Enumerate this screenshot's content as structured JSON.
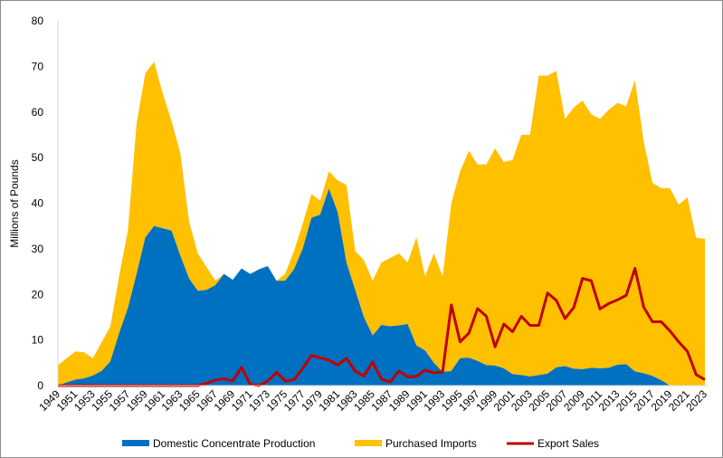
{
  "chart_data": {
    "type": "area",
    "stacked": true,
    "title": "",
    "xlabel": "",
    "ylabel": "Millions of Pounds",
    "ylim": [
      0,
      80
    ],
    "yticks": [
      0,
      10,
      20,
      30,
      40,
      50,
      60,
      70,
      80
    ],
    "x": [
      1949,
      1950,
      1951,
      1952,
      1953,
      1954,
      1955,
      1956,
      1957,
      1958,
      1959,
      1960,
      1961,
      1962,
      1963,
      1964,
      1965,
      1966,
      1967,
      1968,
      1969,
      1970,
      1971,
      1972,
      1973,
      1974,
      1975,
      1976,
      1977,
      1978,
      1979,
      1980,
      1981,
      1982,
      1983,
      1984,
      1985,
      1986,
      1987,
      1988,
      1989,
      1990,
      1991,
      1992,
      1993,
      1994,
      1995,
      1996,
      1997,
      1998,
      1999,
      2000,
      2001,
      2002,
      2003,
      2004,
      2005,
      2006,
      2007,
      2008,
      2009,
      2010,
      2011,
      2012,
      2013,
      2014,
      2015,
      2016,
      2017,
      2018,
      2019,
      2020,
      2021,
      2022,
      2023
    ],
    "xtick_labels": [
      "1949",
      "1951",
      "1953",
      "1955",
      "1957",
      "1959",
      "1961",
      "1963",
      "1965",
      "1967",
      "1969",
      "1971",
      "1973",
      "1975",
      "1977",
      "1979",
      "1981",
      "1983",
      "1985",
      "1987",
      "1989",
      "1991",
      "1993",
      "1995",
      "1997",
      "1999",
      "2001",
      "2003",
      "2005",
      "2007",
      "2009",
      "2011",
      "2013",
      "2015",
      "2017",
      "2019",
      "2021",
      "2023"
    ],
    "grid": false,
    "legend": "bottom",
    "series": [
      {
        "name": "Domestic Concentrate Production",
        "type": "area",
        "color": "#0070c0",
        "values": [
          0,
          0.7,
          1.3,
          1.6,
          2.2,
          3.2,
          5.3,
          11.5,
          17,
          24.5,
          32.5,
          35,
          34.5,
          34,
          28.5,
          23.5,
          20.8,
          21,
          22,
          24.5,
          23.2,
          25.7,
          24.5,
          25.5,
          26.2,
          23,
          23,
          25.5,
          30,
          36.8,
          37.5,
          43.2,
          38,
          27,
          21,
          15,
          11,
          13.3,
          13,
          13.2,
          13.5,
          8.8,
          7.7,
          5,
          3,
          3.2,
          6,
          6.1,
          5.4,
          4.5,
          4.4,
          3.8,
          2.5,
          2.3,
          2,
          2.3,
          2.6,
          4,
          4.3,
          3.7,
          3.6,
          3.9,
          3.8,
          3.9,
          4.6,
          4.7,
          3.1,
          2.7,
          2.1,
          1.2,
          0,
          0,
          0,
          0,
          0
        ]
      },
      {
        "name": "Purchased Imports",
        "type": "area",
        "color": "#ffc000",
        "values": [
          4.5,
          5.3,
          6.2,
          5.7,
          3.8,
          6.3,
          7.7,
          12.5,
          17,
          33,
          36,
          36,
          29.5,
          24,
          22.5,
          12.5,
          8.2,
          5,
          1,
          0,
          0,
          0,
          0,
          0,
          0,
          0,
          1.5,
          4,
          5.5,
          5.2,
          3,
          3.8,
          7,
          17,
          8.5,
          12.5,
          12,
          13.7,
          15,
          15.8,
          13.5,
          23.7,
          16.3,
          24,
          21,
          36.8,
          41,
          45.4,
          43.1,
          44,
          47.6,
          45.2,
          47,
          52.7,
          53,
          65.7,
          65.4,
          65,
          54.2,
          57.3,
          58.9,
          55.6,
          54.7,
          56.6,
          57.4,
          56.6,
          63.9,
          50.8,
          42.4,
          42.1,
          43.3,
          39.7,
          41.3,
          32.4,
          32.2
        ]
      },
      {
        "name": "Export Sales",
        "type": "line",
        "color": "#c00000",
        "values": [
          0,
          0,
          0,
          0,
          0,
          0,
          0,
          0,
          0,
          0,
          0,
          0,
          0,
          0,
          0,
          0,
          0,
          0.5,
          1.2,
          1.5,
          1,
          4,
          0.3,
          0,
          1,
          2.9,
          1,
          1.3,
          3.8,
          6.6,
          6.1,
          5.6,
          4.5,
          6,
          3.2,
          2.1,
          5.2,
          1.4,
          0.8,
          3.2,
          1.9,
          2,
          3.4,
          2.8,
          3,
          17.7,
          9.6,
          11.5,
          16.9,
          15.2,
          8.5,
          13.5,
          11.8,
          15.2,
          13.2,
          13.2,
          20.3,
          18.7,
          14.7,
          17.1,
          23.5,
          23,
          16.8,
          18,
          18.8,
          19.8,
          25.7,
          17.2,
          14,
          14,
          12,
          9.6,
          7.5,
          2.4,
          1.3
        ]
      }
    ]
  }
}
